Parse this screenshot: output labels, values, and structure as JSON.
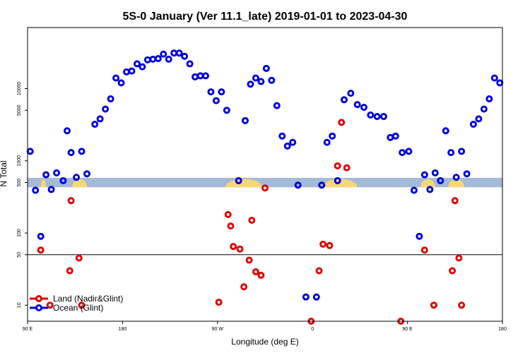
{
  "chart_data": {
    "type": "scatter",
    "title": "5S-0 January (Ver 11.1_late)   2019-01-01 to 2023-04-30",
    "xlabel": "Longitude (deg E)",
    "ylabel": "N Total",
    "x_axis": {
      "range": [
        90,
        450
      ],
      "ticks": [
        {
          "value": 90,
          "label": "90 E"
        },
        {
          "value": 162,
          "label": "180"
        },
        {
          "value": 234,
          "label": "90 W"
        },
        {
          "value": 306,
          "label": "0"
        },
        {
          "value": 378,
          "label": "90 E"
        },
        {
          "value": 450,
          "label": "180"
        }
      ]
    },
    "y_axis": {
      "scale": "log",
      "range": [
        6,
        70000
      ],
      "ticks": [
        {
          "value": 10,
          "label": "10"
        },
        {
          "value": 50,
          "label": "50"
        },
        {
          "value": 100,
          "label": "100"
        },
        {
          "value": 500,
          "label": "500"
        },
        {
          "value": 1000,
          "label": "1000"
        },
        {
          "value": 5000,
          "label": "5000"
        },
        {
          "value": 10000,
          "label": "10000"
        }
      ]
    },
    "reference_line_y": 50,
    "land_band": {
      "y_range": [
        430,
        580
      ],
      "land_segments": [
        [
          100,
          104
        ],
        [
          124,
          135
        ],
        [
          240,
          268
        ],
        [
          314,
          340
        ],
        [
          388,
          399
        ],
        [
          409,
          421
        ]
      ]
    },
    "legend": {
      "position": "bottom-left"
    },
    "series": [
      {
        "name": "Land (Nadir&Glint)",
        "color": "#e00000",
        "points": [
          [
            100,
            58
          ],
          [
            107,
            10
          ],
          [
            122,
            30
          ],
          [
            123,
            280
          ],
          [
            129,
            45
          ],
          [
            131,
            10
          ],
          [
            235,
            11
          ],
          [
            242,
            180
          ],
          [
            244,
            125
          ],
          [
            246,
            65
          ],
          [
            251,
            60
          ],
          [
            254,
            18
          ],
          [
            258,
            42
          ],
          [
            260,
            150
          ],
          [
            263,
            29
          ],
          [
            267,
            26
          ],
          [
            270,
            420
          ],
          [
            305,
            0
          ],
          [
            311,
            30
          ],
          [
            314,
            70
          ],
          [
            319,
            67
          ],
          [
            325,
            850
          ],
          [
            328,
            3400
          ],
          [
            332,
            800
          ],
          [
            373,
            0
          ],
          [
            391,
            58
          ],
          [
            398,
            10
          ],
          [
            412,
            30
          ],
          [
            414,
            280
          ],
          [
            417,
            45
          ],
          [
            419,
            10
          ]
        ]
      },
      {
        "name": "Ocean (Glint)",
        "color": "#0000dd",
        "points": [
          [
            92,
            1350
          ],
          [
            96,
            390
          ],
          [
            100,
            90
          ],
          [
            104,
            640
          ],
          [
            108,
            400
          ],
          [
            112,
            680
          ],
          [
            117,
            530
          ],
          [
            120,
            2600
          ],
          [
            123,
            1300
          ],
          [
            127,
            590
          ],
          [
            131,
            1350
          ],
          [
            135,
            660
          ],
          [
            141,
            3200
          ],
          [
            145,
            3800
          ],
          [
            149,
            5200
          ],
          [
            153,
            7200
          ],
          [
            157,
            14000
          ],
          [
            161,
            12000
          ],
          [
            165,
            17000
          ],
          [
            169,
            17500
          ],
          [
            173,
            22000
          ],
          [
            177,
            20000
          ],
          [
            181,
            25000
          ],
          [
            185,
            25500
          ],
          [
            189,
            26000
          ],
          [
            193,
            30000
          ],
          [
            197,
            25500
          ],
          [
            201,
            31000
          ],
          [
            205,
            31000
          ],
          [
            209,
            28000
          ],
          [
            213,
            22000
          ],
          [
            217,
            14500
          ],
          [
            221,
            15000
          ],
          [
            225,
            15000
          ],
          [
            229,
            9000
          ],
          [
            233,
            6800
          ],
          [
            237,
            9000
          ],
          [
            241,
            5000
          ],
          [
            250,
            530
          ],
          [
            255,
            3600
          ],
          [
            259,
            11500
          ],
          [
            263,
            14000
          ],
          [
            267,
            12500
          ],
          [
            271,
            19000
          ],
          [
            275,
            13000
          ],
          [
            279,
            5800
          ],
          [
            283,
            2200
          ],
          [
            287,
            1600
          ],
          [
            291,
            1800
          ],
          [
            295,
            460
          ],
          [
            301,
            13
          ],
          [
            309,
            13
          ],
          [
            313,
            460
          ],
          [
            317,
            1800
          ],
          [
            321,
            2200
          ],
          [
            325,
            530
          ],
          [
            330,
            7000
          ],
          [
            335,
            8600
          ],
          [
            340,
            6000
          ],
          [
            345,
            5500
          ],
          [
            350,
            4300
          ],
          [
            355,
            4100
          ],
          [
            360,
            4100
          ],
          [
            365,
            2100
          ],
          [
            369,
            2200
          ],
          [
            374,
            1300
          ],
          [
            379,
            1350
          ],
          [
            383,
            390
          ],
          [
            387,
            90
          ],
          [
            391,
            640
          ],
          [
            395,
            400
          ],
          [
            399,
            680
          ],
          [
            403,
            530
          ],
          [
            407,
            2600
          ],
          [
            411,
            1300
          ],
          [
            415,
            590
          ],
          [
            419,
            1350
          ],
          [
            423,
            660
          ],
          [
            428,
            3200
          ],
          [
            432,
            3800
          ],
          [
            436,
            5200
          ],
          [
            440,
            7200
          ],
          [
            444,
            14000
          ],
          [
            448,
            12000
          ]
        ]
      }
    ]
  }
}
